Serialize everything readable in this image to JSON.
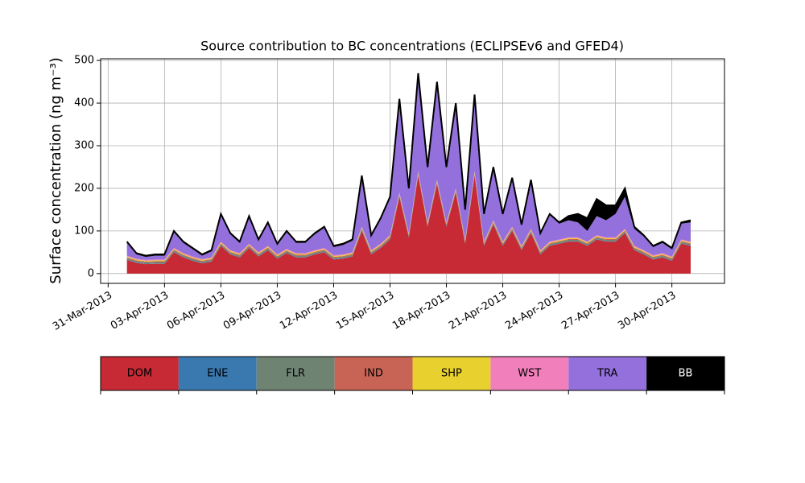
{
  "chart_data": {
    "type": "stacked_area",
    "title": "Source contribution to BC concentrations (ECLIPSEv6 and GFED4)",
    "y_label": "Surface concentration (ng m⁻³)",
    "x": [
      1,
      1.5,
      2,
      2.5,
      3,
      3.5,
      4,
      4.5,
      5,
      5.5,
      6,
      6.5,
      7,
      7.5,
      8,
      8.5,
      9,
      9.5,
      10,
      10.5,
      11,
      11.5,
      12,
      12.5,
      13,
      13.5,
      14,
      14.5,
      15,
      15.5,
      16,
      16.5,
      17,
      17.5,
      18,
      18.5,
      19,
      19.5,
      20,
      20.5,
      21,
      21.5,
      22,
      22.5,
      23,
      23.5,
      24,
      24.5,
      25,
      25.5,
      26,
      26.5,
      27,
      27.5,
      28,
      28.5,
      29,
      29.5,
      30,
      30.5,
      31
    ],
    "series": [
      {
        "name": "DOM",
        "color": "#c72a35",
        "values": [
          32,
          25,
          22,
          23,
          23,
          50,
          38,
          30,
          24,
          28,
          65,
          45,
          38,
          60,
          40,
          55,
          35,
          48,
          38,
          38,
          45,
          50,
          33,
          35,
          40,
          100,
          45,
          60,
          80,
          180,
          85,
          230,
          110,
          210,
          110,
          190,
          70,
          230,
          65,
          115,
          65,
          100,
          55,
          95,
          45,
          65,
          70,
          75,
          75,
          65,
          80,
          75,
          75,
          95,
          55,
          45,
          33,
          38,
          30,
          70,
          65
        ]
      },
      {
        "name": "ENE",
        "color": "#3a78b0",
        "values": [
          1,
          1,
          1,
          1,
          1,
          1,
          1,
          1,
          1,
          1,
          1,
          1,
          1,
          1,
          1,
          1,
          1,
          1,
          1,
          1,
          1,
          1,
          1,
          1,
          1,
          1,
          1,
          1,
          1,
          1,
          1,
          1,
          1,
          1,
          1,
          1,
          1,
          1,
          1,
          1,
          1,
          1,
          1,
          1,
          1,
          1,
          1,
          1,
          1,
          1,
          1,
          1,
          1,
          1,
          1,
          1,
          1,
          1,
          1,
          1,
          1
        ]
      },
      {
        "name": "FLR",
        "color": "#6e8372",
        "values": [
          3,
          3,
          3,
          3,
          3,
          3,
          3,
          3,
          3,
          3,
          3,
          3,
          3,
          3,
          3,
          3,
          3,
          3,
          3,
          3,
          3,
          3,
          3,
          3,
          3,
          3,
          3,
          3,
          3,
          3,
          3,
          3,
          3,
          3,
          3,
          3,
          3,
          3,
          3,
          3,
          3,
          3,
          3,
          3,
          3,
          3,
          3,
          3,
          3,
          3,
          3,
          3,
          3,
          3,
          3,
          3,
          3,
          3,
          3,
          3,
          3
        ]
      },
      {
        "name": "IND",
        "color": "#c76455",
        "values": [
          2,
          2,
          2,
          2,
          2,
          2,
          2,
          2,
          2,
          2,
          2,
          2,
          2,
          2,
          2,
          2,
          2,
          2,
          2,
          2,
          2,
          2,
          2,
          2,
          2,
          2,
          2,
          2,
          2,
          2,
          2,
          2,
          2,
          2,
          2,
          2,
          2,
          2,
          2,
          2,
          2,
          2,
          2,
          2,
          2,
          2,
          2,
          2,
          2,
          2,
          2,
          2,
          2,
          2,
          2,
          2,
          2,
          2,
          2,
          2,
          2
        ]
      },
      {
        "name": "SHP",
        "color": "#e8d02f",
        "values": [
          2,
          2,
          2,
          2,
          2,
          2,
          2,
          2,
          2,
          2,
          2,
          2,
          2,
          2,
          2,
          2,
          2,
          2,
          2,
          2,
          2,
          2,
          2,
          2,
          2,
          2,
          2,
          2,
          2,
          2,
          2,
          2,
          2,
          2,
          2,
          2,
          2,
          2,
          2,
          2,
          2,
          2,
          2,
          2,
          2,
          2,
          2,
          2,
          2,
          2,
          2,
          2,
          2,
          2,
          2,
          2,
          2,
          2,
          2,
          2,
          2
        ]
      },
      {
        "name": "WST",
        "color": "#f07fbc",
        "values": [
          2,
          2,
          2,
          2,
          2,
          2,
          2,
          2,
          2,
          2,
          2,
          2,
          2,
          2,
          2,
          2,
          2,
          2,
          2,
          2,
          2,
          2,
          2,
          2,
          2,
          2,
          2,
          2,
          2,
          2,
          2,
          2,
          2,
          2,
          2,
          2,
          2,
          2,
          2,
          2,
          2,
          2,
          2,
          2,
          2,
          2,
          2,
          2,
          2,
          2,
          2,
          2,
          2,
          2,
          2,
          2,
          2,
          2,
          2,
          2,
          2
        ]
      },
      {
        "name": "TRA",
        "color": "#9370db",
        "values": [
          30,
          10,
          7,
          9,
          9,
          37,
          24,
          17,
          8,
          14,
          62,
          37,
          24,
          62,
          27,
          52,
          22,
          39,
          24,
          24,
          37,
          47,
          19,
          22,
          27,
          114,
          32,
          57,
          87,
          210,
          102,
          218,
          127,
          218,
          127,
          197,
          67,
          170,
          62,
          122,
          62,
          112,
          47,
          112,
          37,
          62,
          37,
          40,
          35,
          25,
          45,
          40,
          55,
          75,
          40,
          32,
          19,
          24,
          17,
          37,
          45
        ]
      },
      {
        "name": "BB",
        "color": "#000000",
        "values": [
          3,
          3,
          3,
          3,
          3,
          3,
          3,
          3,
          3,
          3,
          3,
          3,
          3,
          3,
          3,
          3,
          3,
          3,
          3,
          3,
          3,
          3,
          3,
          3,
          3,
          6,
          3,
          3,
          3,
          10,
          3,
          12,
          3,
          12,
          3,
          3,
          3,
          10,
          3,
          3,
          3,
          3,
          3,
          3,
          3,
          3,
          3,
          10,
          20,
          30,
          40,
          35,
          20,
          20,
          5,
          3,
          3,
          3,
          3,
          3,
          5
        ]
      }
    ],
    "xlim": [
      -0.4,
      32.8
    ],
    "xticks": [
      {
        "value": 0,
        "label": "31-Mar-2013"
      },
      {
        "value": 3,
        "label": "03-Apr-2013"
      },
      {
        "value": 6,
        "label": "06-Apr-2013"
      },
      {
        "value": 9,
        "label": "09-Apr-2013"
      },
      {
        "value": 12,
        "label": "12-Apr-2013"
      },
      {
        "value": 15,
        "label": "15-Apr-2013"
      },
      {
        "value": 18,
        "label": "18-Apr-2013"
      },
      {
        "value": 21,
        "label": "21-Apr-2013"
      },
      {
        "value": 24,
        "label": "24-Apr-2013"
      },
      {
        "value": 27,
        "label": "27-Apr-2013"
      },
      {
        "value": 30,
        "label": "30-Apr-2013"
      }
    ],
    "ylim": [
      -23,
      504
    ],
    "yticks": [
      0,
      100,
      200,
      300,
      400,
      500
    ],
    "grid": true,
    "legend": "below"
  }
}
